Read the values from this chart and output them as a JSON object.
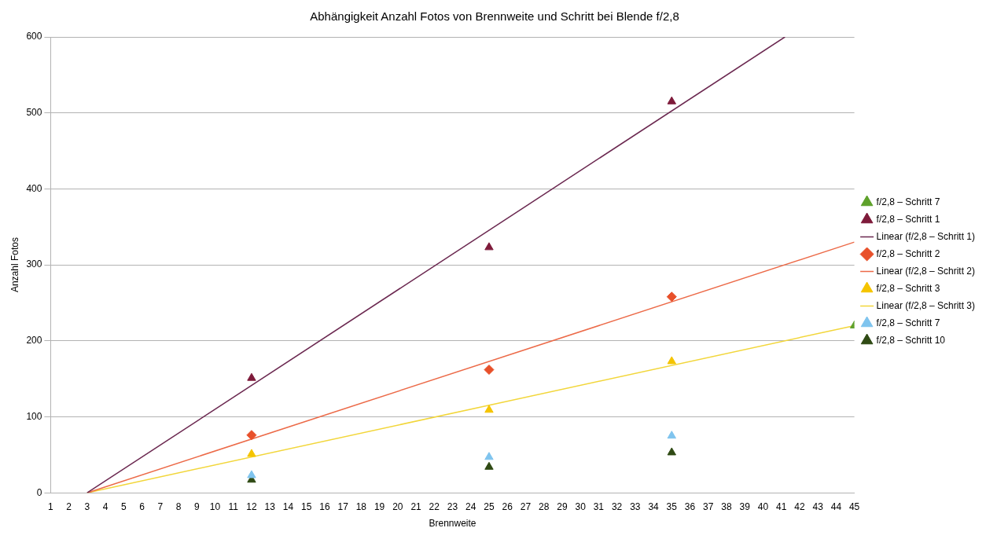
{
  "chart_data": {
    "type": "scatter",
    "title": "Abhängigkeit Anzahl Fotos von Brennweite und Schritt bei Blende f/2,8",
    "xlabel": "Brennweite",
    "ylabel": "Anzahl Fotos",
    "xlim": [
      1,
      45
    ],
    "xticks": [
      1,
      2,
      3,
      4,
      5,
      6,
      7,
      8,
      9,
      10,
      11,
      12,
      13,
      14,
      15,
      16,
      17,
      18,
      19,
      20,
      21,
      22,
      23,
      24,
      25,
      26,
      27,
      28,
      29,
      30,
      31,
      32,
      33,
      34,
      35,
      36,
      37,
      38,
      39,
      40,
      41,
      42,
      43,
      44,
      45
    ],
    "ylim": [
      0,
      600
    ],
    "yticks": [
      0,
      100,
      200,
      300,
      400,
      500,
      600
    ],
    "grid": "y",
    "legend": "right",
    "series": [
      {
        "name": "f/2,8 – Schritt 7",
        "color": "#5ea12b",
        "marker": "triangle",
        "x": [
          45
        ],
        "values": [
          220
        ]
      },
      {
        "name": "f/2,8 – Schritt 1",
        "color": "#7e1a3a",
        "marker": "triangle",
        "x": [
          12,
          25,
          35
        ],
        "values": [
          151,
          323,
          515
        ]
      },
      {
        "name": "Linear (f/2,8 – Schritt 1)",
        "type": "line",
        "color": "#6b2850",
        "marker": "none",
        "x": [
          3,
          41.2
        ],
        "values": [
          0,
          600
        ]
      },
      {
        "name": "f/2,8 – Schritt 2",
        "color": "#e8502a",
        "marker": "diamond",
        "x": [
          12,
          25,
          35
        ],
        "values": [
          76,
          162,
          258
        ]
      },
      {
        "name": "Linear (f/2,8 – Schritt 2)",
        "type": "line",
        "color": "#ec6a48",
        "marker": "none",
        "x": [
          3,
          45
        ],
        "values": [
          0,
          330
        ]
      },
      {
        "name": "f/2,8 – Schritt 3",
        "color": "#f5c400",
        "marker": "triangle",
        "x": [
          12,
          25,
          35
        ],
        "values": [
          51,
          109,
          173
        ]
      },
      {
        "name": "Linear (f/2,8 – Schritt 3)",
        "type": "line",
        "color": "#f2d63a",
        "marker": "none",
        "x": [
          3,
          45
        ],
        "values": [
          0,
          220
        ]
      },
      {
        "name": "f/2,8 – Schritt 7",
        "color": "#7fc4ee",
        "marker": "triangle",
        "x": [
          12,
          25,
          35
        ],
        "values": [
          23,
          47,
          75
        ]
      },
      {
        "name": "f/2,8 – Schritt 10",
        "color": "#2f4a14",
        "marker": "triangle",
        "x": [
          12,
          25,
          35
        ],
        "values": [
          17,
          34,
          53
        ]
      }
    ]
  }
}
